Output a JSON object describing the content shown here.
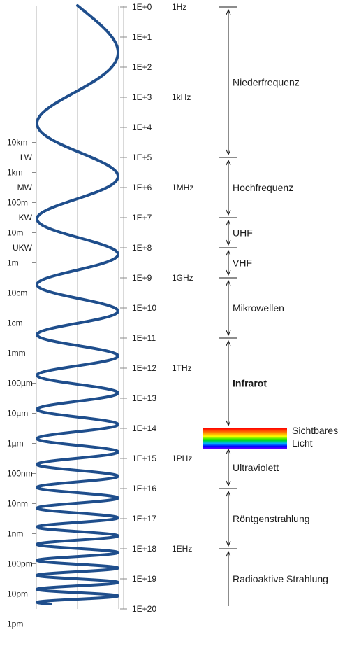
{
  "frequency_ticks": [
    "1E+0",
    "1E+1",
    "1E+2",
    "1E+3",
    "1E+4",
    "1E+5",
    "1E+6",
    "1E+7",
    "1E+8",
    "1E+9",
    "1E+10",
    "1E+11",
    "1E+12",
    "1E+13",
    "1E+14",
    "1E+15",
    "1E+16",
    "1E+17",
    "1E+18",
    "1E+19",
    "1E+20"
  ],
  "unit_labels": [
    {
      "exp": 0,
      "text": "1Hz"
    },
    {
      "exp": 3,
      "text": "1kHz"
    },
    {
      "exp": 6,
      "text": "1MHz"
    },
    {
      "exp": 9,
      "text": "1GHz"
    },
    {
      "exp": 12,
      "text": "1THz"
    },
    {
      "exp": 15,
      "text": "1PHz"
    },
    {
      "exp": 18,
      "text": "1EHz"
    }
  ],
  "wavelength_labels": [
    {
      "exp": 4.5,
      "text": "10km"
    },
    {
      "exp": 5.5,
      "text": "1km"
    },
    {
      "exp": 6.5,
      "text": "100m"
    },
    {
      "exp": 7.5,
      "text": "10m"
    },
    {
      "exp": 8.5,
      "text": "1m"
    },
    {
      "exp": 9.5,
      "text": "10cm"
    },
    {
      "exp": 10.5,
      "text": "1cm"
    },
    {
      "exp": 11.5,
      "text": "1mm"
    },
    {
      "exp": 12.5,
      "text": "100µm"
    },
    {
      "exp": 13.5,
      "text": "10µm"
    },
    {
      "exp": 14.5,
      "text": "1µm"
    },
    {
      "exp": 15.5,
      "text": "100nm"
    },
    {
      "exp": 16.5,
      "text": "10nm"
    },
    {
      "exp": 17.5,
      "text": "1nm"
    },
    {
      "exp": 18.5,
      "text": "100pm"
    },
    {
      "exp": 19.5,
      "text": "10pm"
    },
    {
      "exp": 20.5,
      "text": "1pm"
    }
  ],
  "radio_bands": [
    {
      "exp": 5.0,
      "text": "LW"
    },
    {
      "exp": 6.0,
      "text": "MW"
    },
    {
      "exp": 7.0,
      "text": "KW"
    },
    {
      "exp": 8.0,
      "text": "UKW"
    }
  ],
  "bands": [
    {
      "from": 0,
      "to": 5,
      "text": "Niederfrequenz"
    },
    {
      "from": 5,
      "to": 7,
      "text": "Hochfrequenz"
    },
    {
      "from": 7,
      "to": 8,
      "text": "UHF"
    },
    {
      "from": 8,
      "to": 9,
      "text": "VHF"
    },
    {
      "from": 9,
      "to": 11,
      "text": "Mikrowellen"
    },
    {
      "from": 11,
      "to": 14,
      "text": "Infrarot",
      "bold": true
    },
    {
      "from": 14.6,
      "to": 16,
      "text": "Ultraviolett"
    },
    {
      "from": 16,
      "to": 18,
      "text": "Röntgenstrahlung"
    },
    {
      "from": 18,
      "to": 20.5,
      "text": "Radioaktive Strahlung"
    }
  ],
  "visible_light": {
    "line1": "Sichtbares",
    "line2": "Licht"
  },
  "colors": {
    "wave": "#1f4e8c",
    "gridline": "#b3b3b3",
    "axis": "#1a1a1a",
    "spectrum": [
      "#ff0000",
      "#ff7f00",
      "#ffff00",
      "#00ff00",
      "#00c0ff",
      "#0000ff",
      "#8b00ff"
    ]
  }
}
